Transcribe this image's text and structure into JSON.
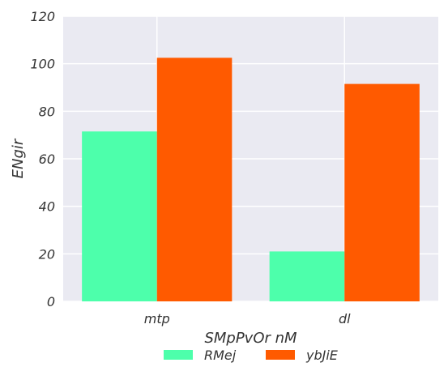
{
  "chart_data": {
    "type": "bar",
    "categories": [
      "mtp",
      "dl"
    ],
    "series": [
      {
        "name": "RMej",
        "values": [
          71.5,
          21
        ],
        "color": "#4dffab"
      },
      {
        "name": "ybJiE",
        "values": [
          102.5,
          91.5
        ],
        "color": "#ff5a00"
      }
    ],
    "xlabel": "SMpPvOr nM",
    "ylabel": "ENgir",
    "ylim": [
      0,
      120
    ],
    "yticks": [
      0,
      20,
      40,
      60,
      80,
      100,
      120
    ],
    "grid": true,
    "legend_position": "bottom-center",
    "background_color": "#eaeaf2",
    "grid_color": "#ffffff"
  }
}
